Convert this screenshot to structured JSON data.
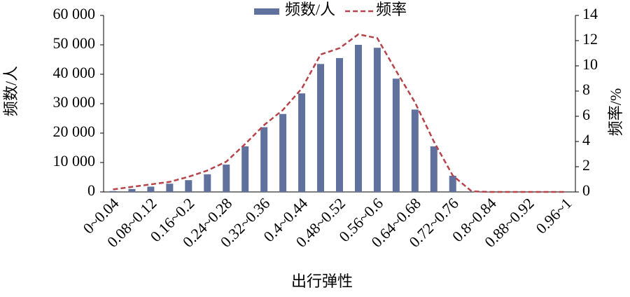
{
  "chart_data": {
    "type": "bar-line",
    "x_label": "出行弹性",
    "y_label": "频数/人",
    "y2_label": "频率/%",
    "categories": [
      "0~0.04",
      null,
      "0.08~0.12",
      null,
      "0.16~0.2",
      null,
      "0.24~0.28",
      null,
      "0.32~0.36",
      null,
      "0.4~0.44",
      null,
      "0.48~0.52",
      null,
      "0.56~0.6",
      null,
      "0.64~0.68",
      null,
      "0.72~0.76",
      null,
      "0.8~0.84",
      null,
      "0.88~0.92",
      null,
      "0.96~1"
    ],
    "series": [
      {
        "name": "频数/人",
        "kind": "bar",
        "color": "#61719e",
        "values": [
          300,
          1000,
          1800,
          2800,
          4000,
          6000,
          9300,
          15500,
          22000,
          26500,
          33500,
          43500,
          45500,
          50000,
          49000,
          38500,
          28000,
          15500,
          5500,
          200,
          50,
          20,
          10,
          5,
          5
        ]
      },
      {
        "name": "频率",
        "kind": "line",
        "axis": "y2",
        "color": "#b7434a",
        "dashed": true,
        "values": [
          0.2,
          0.4,
          0.6,
          0.8,
          1.2,
          1.7,
          2.4,
          3.8,
          5.3,
          6.5,
          8.2,
          10.9,
          11.4,
          12.5,
          12.2,
          9.6,
          7.1,
          4.0,
          1.3,
          0.05,
          0,
          0,
          0,
          0,
          0
        ]
      }
    ],
    "ylim": [
      0,
      60000
    ],
    "yticks": [
      0,
      {
        "value": 10000,
        "label": "10 000"
      },
      {
        "value": 20000,
        "label": "20 000"
      },
      {
        "value": 30000,
        "label": "30 000"
      },
      {
        "value": 40000,
        "label": "40 000"
      },
      {
        "value": 50000,
        "label": "50 000"
      },
      {
        "value": 60000,
        "label": "60 000"
      }
    ],
    "y2lim": [
      0,
      14
    ],
    "y2ticks": [
      0,
      2,
      4,
      6,
      8,
      10,
      12,
      14
    ],
    "legend": "top"
  }
}
